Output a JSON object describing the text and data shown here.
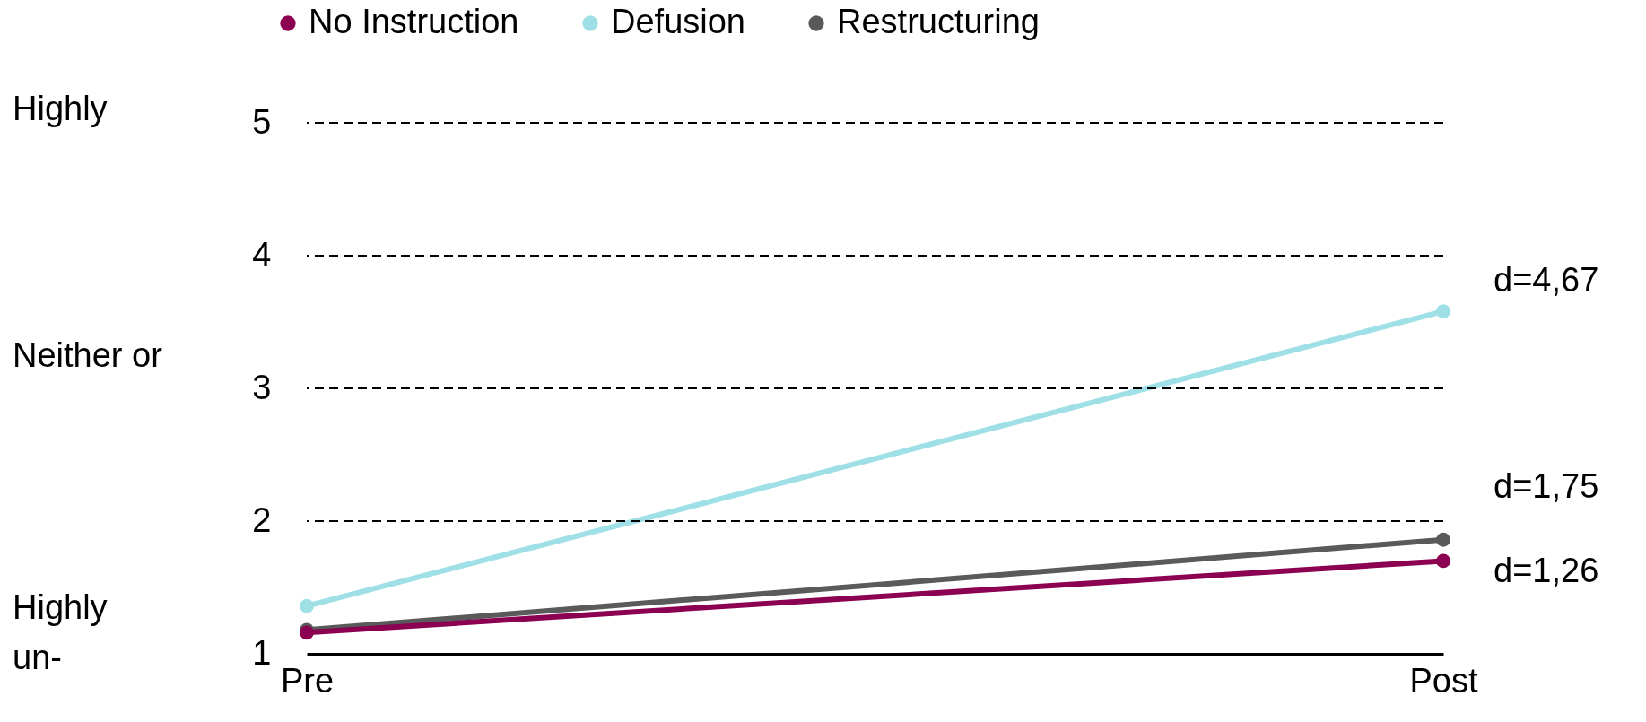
{
  "chart_data": {
    "type": "line",
    "categories": [
      "Pre",
      "Post"
    ],
    "series": [
      {
        "name": "No Instruction",
        "color": "#8b0050",
        "values": [
          1.16,
          1.7
        ]
      },
      {
        "name": "Defusion",
        "color": "#9ee0e6",
        "values": [
          1.36,
          3.58
        ]
      },
      {
        "name": "Restructuring",
        "color": "#5a5a5a",
        "values": [
          1.18,
          1.86
        ]
      }
    ],
    "ylim": [
      1,
      5
    ],
    "yticks": [
      1,
      2,
      3,
      4,
      5
    ],
    "ref_lines": [
      {
        "axis": "y",
        "value": 2,
        "color": "#000000",
        "line_style": "dashed"
      },
      {
        "axis": "y",
        "value": 3,
        "color": "#000000",
        "line_style": "dashed"
      },
      {
        "axis": "y",
        "value": 4,
        "color": "#000000",
        "line_style": "dashed"
      },
      {
        "axis": "y",
        "value": 5,
        "color": "#000000",
        "line_style": "dashed"
      }
    ],
    "legend": "top",
    "marker": "circle",
    "line_style": "solid",
    "annotations": [
      "Highly",
      "Neither or",
      "Highly un-",
      "d=4,67",
      "d=1,75",
      "d=1,26"
    ]
  }
}
